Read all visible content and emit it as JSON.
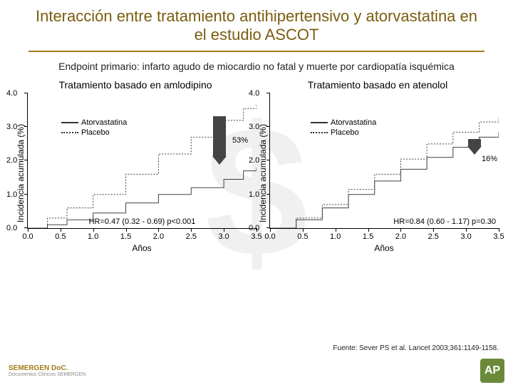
{
  "title": "Interacción entre tratamiento antihipertensivo y atorvastatina en el estudio ASCOT",
  "subtitle": "Endpoint primario: infarto agudo de miocardio no fatal y muerte por cardiopatía isquémica",
  "source": "Fuente: Sever PS et al. Lancet 2003;361:1149-1158.",
  "footer_logo": "SEMERGEN DoC.",
  "footer_logo_sub": "Documentos Clínicos SEMERGEN",
  "footer_badge": "AP",
  "colors": {
    "title": "#7a5c0f",
    "rule": "#a07d1a",
    "curve": "#404040",
    "arrow": "#444444",
    "background": "#ffffff",
    "watermark": "#f0f0f0"
  },
  "axis": {
    "ylim": [
      0,
      4.0
    ],
    "yticks": [
      0.0,
      1.0,
      2.0,
      3.0,
      4.0
    ],
    "ytick_labels": [
      "0.0",
      "1.0",
      "2.0",
      "3.0",
      "4.0"
    ],
    "xlim": [
      0,
      3.5
    ],
    "xticks": [
      0.0,
      0.5,
      1.0,
      1.5,
      2.0,
      2.5,
      3.0,
      3.5
    ],
    "xtick_labels": [
      "0.0",
      "0.5",
      "1.0",
      "1.5",
      "2.0",
      "2.5",
      "3.0",
      "3.5"
    ],
    "xlabel": "Años",
    "ylabel": "Incidencia acumulada (%)"
  },
  "legend": {
    "atorva": "Atorvastatina",
    "placebo": "Placebo"
  },
  "left": {
    "title": "Tratamiento basado en amlodipino",
    "hr": "HR=0.47 (0.32 - 0.69) p<0.001",
    "effect": "53%",
    "series": {
      "atorva": {
        "style": "solid",
        "points": [
          [
            0,
            0
          ],
          [
            0.3,
            0.1
          ],
          [
            0.6,
            0.25
          ],
          [
            1.0,
            0.45
          ],
          [
            1.5,
            0.75
          ],
          [
            2.0,
            1.0
          ],
          [
            2.5,
            1.2
          ],
          [
            3.0,
            1.45
          ],
          [
            3.3,
            1.7
          ],
          [
            3.5,
            1.8
          ]
        ]
      },
      "placebo": {
        "style": "dotted",
        "points": [
          [
            0,
            0
          ],
          [
            0.3,
            0.3
          ],
          [
            0.6,
            0.6
          ],
          [
            1.0,
            1.0
          ],
          [
            1.5,
            1.6
          ],
          [
            2.0,
            2.2
          ],
          [
            2.5,
            2.7
          ],
          [
            3.0,
            3.2
          ],
          [
            3.3,
            3.55
          ],
          [
            3.5,
            3.7
          ]
        ]
      }
    }
  },
  "right": {
    "title": "Tratamiento basado en atenolol",
    "hr": "HR=0.84 (0.60 - 1.17) p=0.30",
    "effect": "16%",
    "series": {
      "atorva": {
        "style": "solid",
        "points": [
          [
            0,
            0
          ],
          [
            0.4,
            0.25
          ],
          [
            0.8,
            0.6
          ],
          [
            1.2,
            1.0
          ],
          [
            1.6,
            1.4
          ],
          [
            2.0,
            1.75
          ],
          [
            2.4,
            2.1
          ],
          [
            2.8,
            2.4
          ],
          [
            3.2,
            2.7
          ],
          [
            3.5,
            2.85
          ]
        ]
      },
      "placebo": {
        "style": "dotted",
        "points": [
          [
            0,
            0
          ],
          [
            0.4,
            0.3
          ],
          [
            0.8,
            0.7
          ],
          [
            1.2,
            1.15
          ],
          [
            1.6,
            1.6
          ],
          [
            2.0,
            2.05
          ],
          [
            2.4,
            2.5
          ],
          [
            2.8,
            2.85
          ],
          [
            3.2,
            3.15
          ],
          [
            3.5,
            3.3
          ]
        ]
      }
    }
  }
}
